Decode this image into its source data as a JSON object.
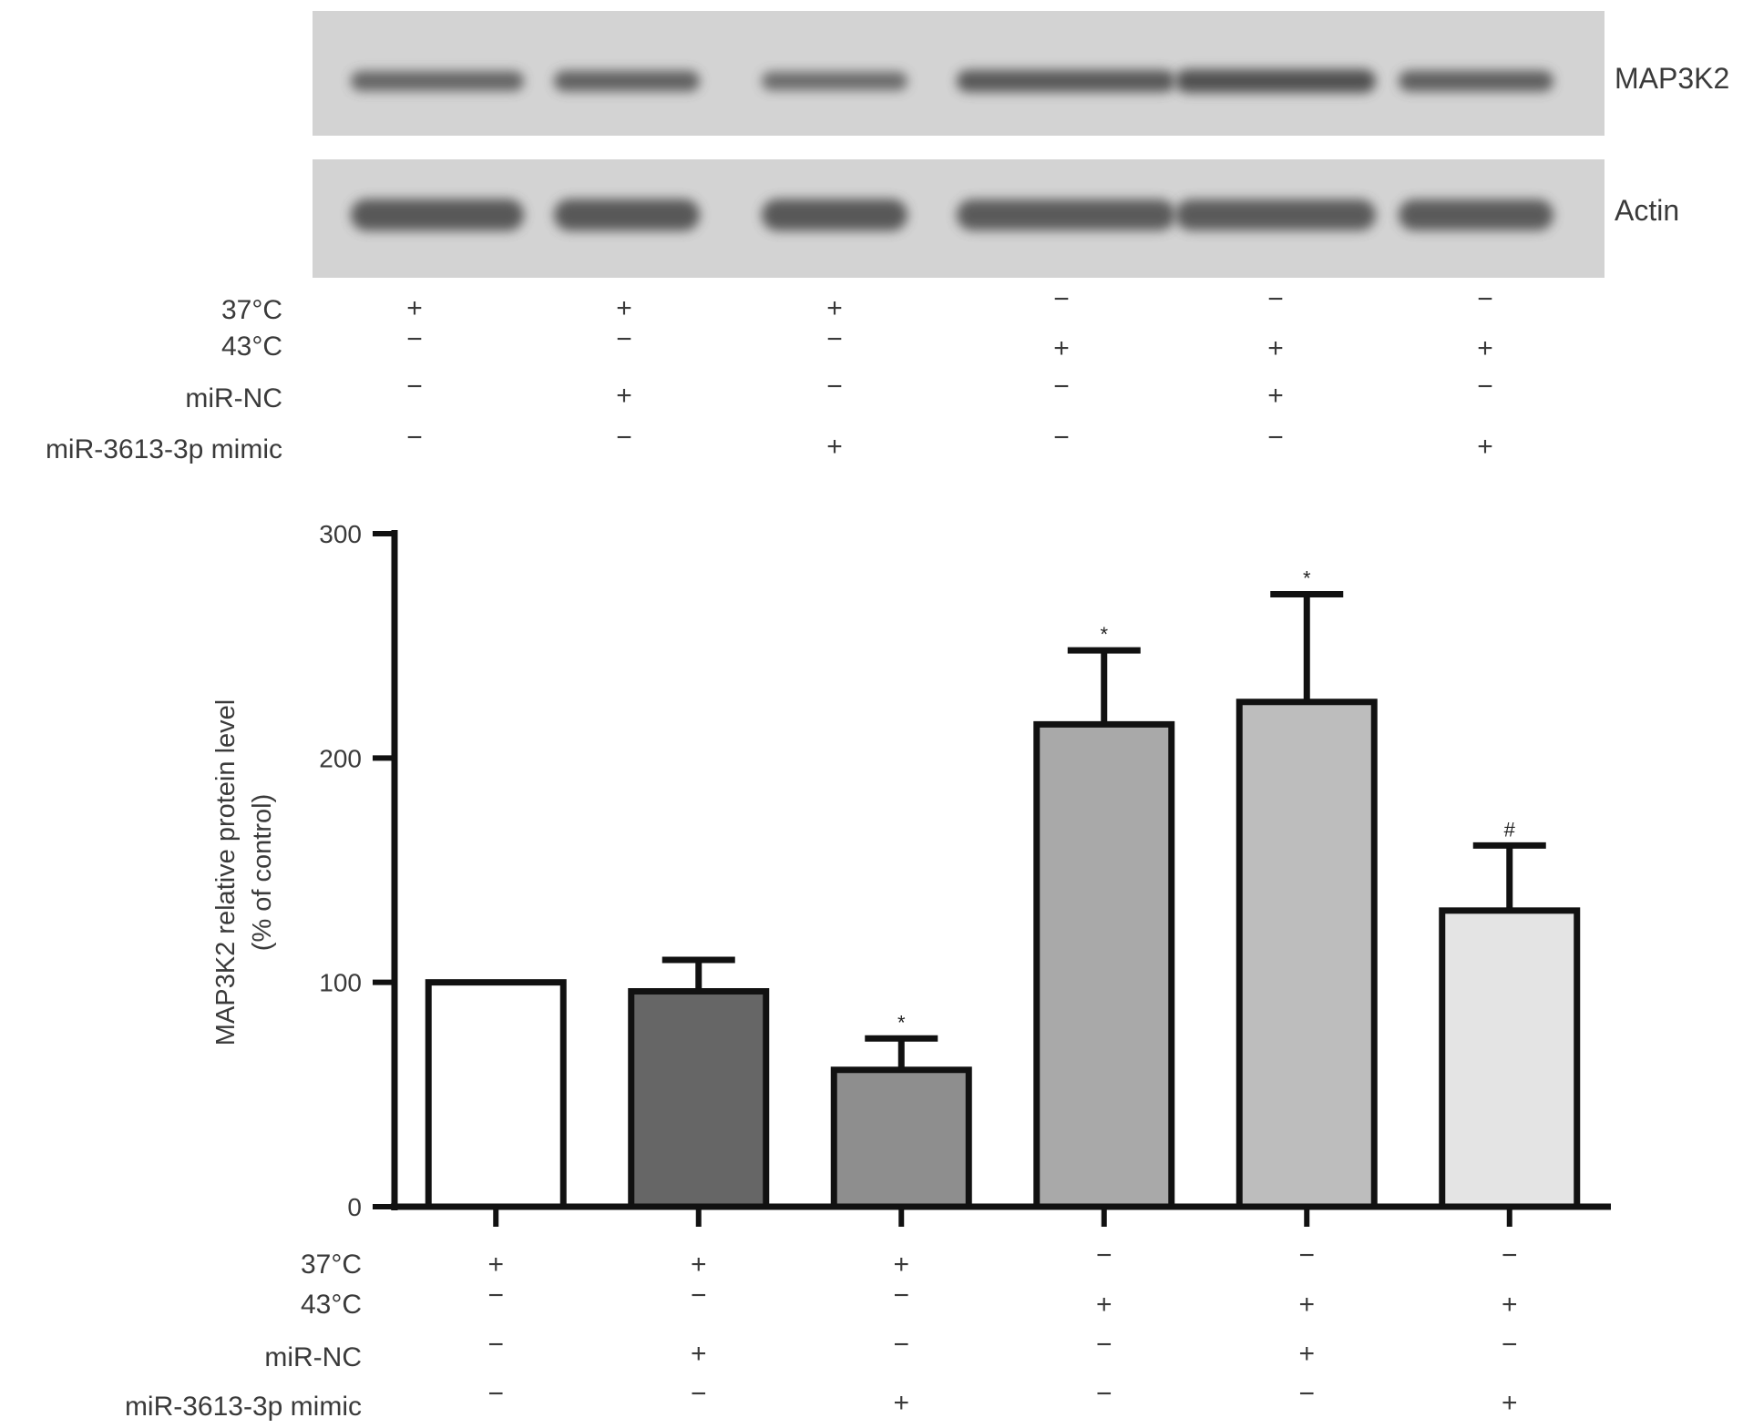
{
  "blot": {
    "bands": [
      {
        "name": "MAP3K2",
        "intensities": [
          0.62,
          0.7,
          0.5,
          0.82,
          0.95,
          0.72
        ]
      },
      {
        "name": "Actin",
        "intensities": [
          0.85,
          0.85,
          0.85,
          0.8,
          0.8,
          0.8
        ]
      }
    ],
    "background": "#d3d3d3",
    "band_color": "#4f4f4f"
  },
  "conditions": {
    "rows": [
      {
        "label": "37°C",
        "signs": [
          "+",
          "+",
          "+",
          "−",
          "−",
          "−"
        ]
      },
      {
        "label": "43°C",
        "signs": [
          "−",
          "−",
          "−",
          "+",
          "+",
          "+"
        ]
      },
      {
        "label": "miR-NC",
        "signs": [
          "−",
          "+",
          "−",
          "−",
          "+",
          "−"
        ]
      },
      {
        "label": "miR-3613-3p mimic",
        "signs": [
          "−",
          "−",
          "+",
          "−",
          "−",
          "+"
        ]
      }
    ]
  },
  "chart_data": {
    "type": "bar",
    "ylabel_line1": "MAP3K2 relative protein level",
    "ylabel_line2": "(% of control)",
    "ylim": [
      0,
      300
    ],
    "yticks": [
      0,
      100,
      200,
      300
    ],
    "values": [
      100,
      96,
      61,
      215,
      225,
      132
    ],
    "errors": [
      0,
      14,
      14,
      33,
      48,
      29
    ],
    "significance": [
      "",
      "",
      "*",
      "*",
      "*",
      "#"
    ],
    "bar_colors": [
      "#ffffff",
      "#666666",
      "#8e8e8e",
      "#a9a9a9",
      "#bdbdbd",
      "#e4e4e4"
    ]
  }
}
